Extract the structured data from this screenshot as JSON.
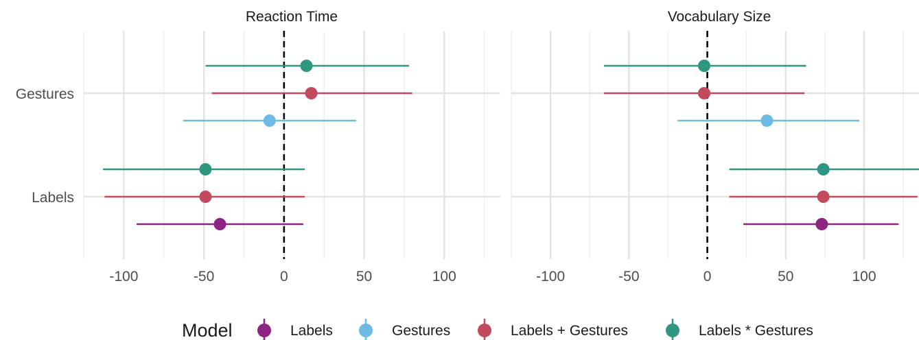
{
  "chart_data": {
    "type": "scatter",
    "subtype": "forest / coefficient plot with confidence intervals",
    "y_categories": [
      "Gestures",
      "Labels"
    ],
    "x_ticks": [
      -100,
      -50,
      0,
      50,
      100
    ],
    "xlim": [
      -125,
      135
    ],
    "reference_line_x": 0,
    "grid": true,
    "legend_position": "bottom",
    "legend": {
      "title": "Model",
      "entries": [
        {
          "label": "Labels",
          "color": "#8e2482"
        },
        {
          "label": "Gestures",
          "color": "#6cbbe4"
        },
        {
          "label": "Labels + Gestures",
          "color": "#c24a5c"
        },
        {
          "label": "Labels * Gestures",
          "color": "#2f9680"
        }
      ]
    },
    "panels": [
      {
        "title": "Reaction Time",
        "points": [
          {
            "term": "Gestures",
            "model": "Labels * Gestures",
            "estimate": 14,
            "low": -49,
            "high": 78
          },
          {
            "term": "Gestures",
            "model": "Labels + Gestures",
            "estimate": 17,
            "low": -45,
            "high": 80
          },
          {
            "term": "Gestures",
            "model": "Gestures",
            "estimate": -9,
            "low": -63,
            "high": 45
          },
          {
            "term": "Labels",
            "model": "Labels * Gestures",
            "estimate": -49,
            "low": -113,
            "high": 13
          },
          {
            "term": "Labels",
            "model": "Labels + Gestures",
            "estimate": -49,
            "low": -112,
            "high": 13
          },
          {
            "term": "Labels",
            "model": "Labels",
            "estimate": -40,
            "low": -92,
            "high": 12
          }
        ]
      },
      {
        "title": "Vocabulary Size",
        "points": [
          {
            "term": "Gestures",
            "model": "Labels * Gestures",
            "estimate": -2,
            "low": -66,
            "high": 63
          },
          {
            "term": "Gestures",
            "model": "Labels + Gestures",
            "estimate": -2,
            "low": -66,
            "high": 62
          },
          {
            "term": "Gestures",
            "model": "Gestures",
            "estimate": 38,
            "low": -19,
            "high": 97
          },
          {
            "term": "Labels",
            "model": "Labels * Gestures",
            "estimate": 74,
            "low": 14,
            "high": 135
          },
          {
            "term": "Labels",
            "model": "Labels + Gestures",
            "estimate": 74,
            "low": 14,
            "high": 134
          },
          {
            "term": "Labels",
            "model": "Labels",
            "estimate": 73,
            "low": 23,
            "high": 122
          }
        ]
      }
    ]
  }
}
